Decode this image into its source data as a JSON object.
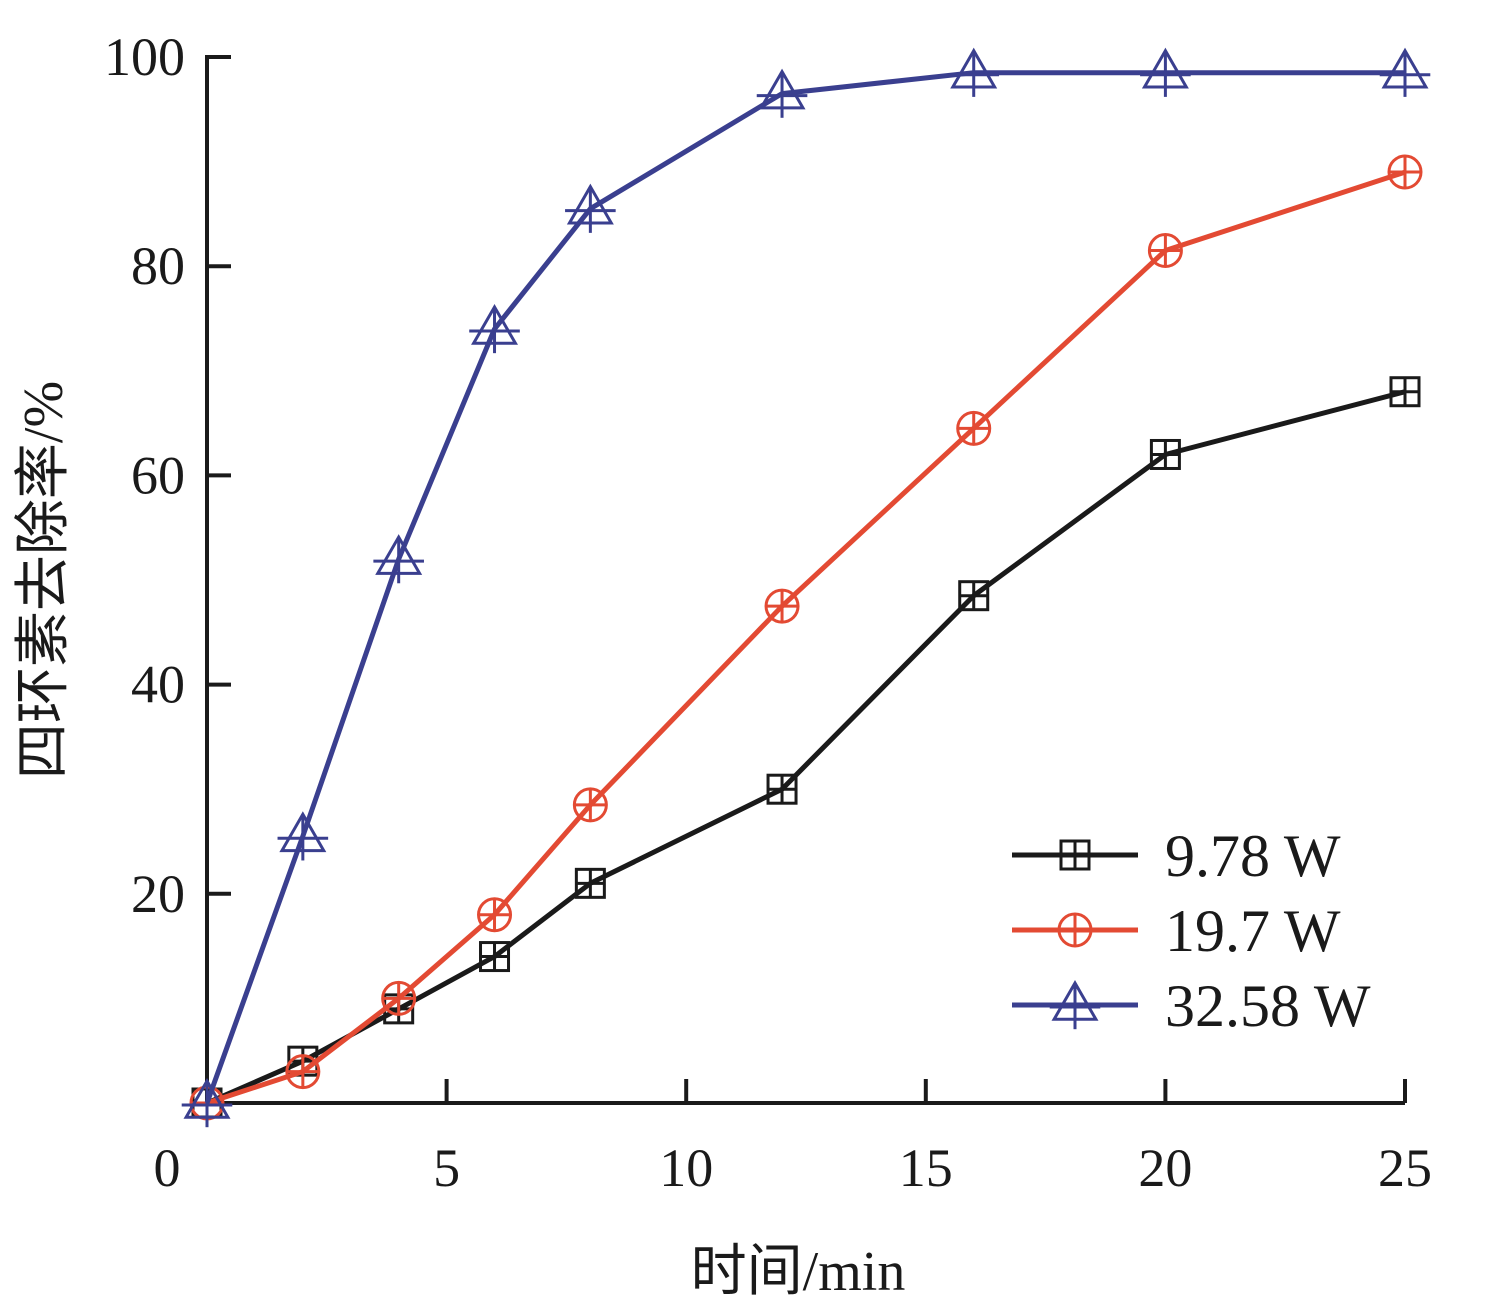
{
  "chart_data": {
    "type": "line",
    "xlabel": "时间/min",
    "ylabel": "四环素去除率/%",
    "xlim": [
      0,
      25
    ],
    "ylim": [
      0,
      100
    ],
    "xticks": [
      0,
      5,
      10,
      15,
      20,
      25
    ],
    "yticks": [
      20,
      40,
      60,
      80,
      100
    ],
    "grid": false,
    "legend": "bottom-right",
    "series": [
      {
        "name": "9.78 W",
        "marker": "square-plus",
        "color": "#1a1a1a",
        "x": [
          0,
          2,
          4,
          6,
          8,
          12,
          16,
          20,
          25
        ],
        "y": [
          0,
          4,
          9,
          14,
          21,
          30,
          48.5,
          62,
          68
        ]
      },
      {
        "name": "19.7 W",
        "marker": "circle-plus",
        "color": "#e34a33",
        "x": [
          0,
          2,
          4,
          6,
          8,
          12,
          16,
          20,
          25
        ],
        "y": [
          0,
          3,
          10,
          18,
          28.5,
          47.5,
          64.5,
          81.5,
          89
        ]
      },
      {
        "name": "32.58 W",
        "marker": "triangle-plus",
        "color": "#3a3f8f",
        "x": [
          0,
          2,
          4,
          6,
          8,
          12,
          16,
          20,
          25
        ],
        "y": [
          0,
          25.5,
          52,
          74,
          85.5,
          96.5,
          98.5,
          98.5,
          98.5
        ]
      }
    ]
  }
}
